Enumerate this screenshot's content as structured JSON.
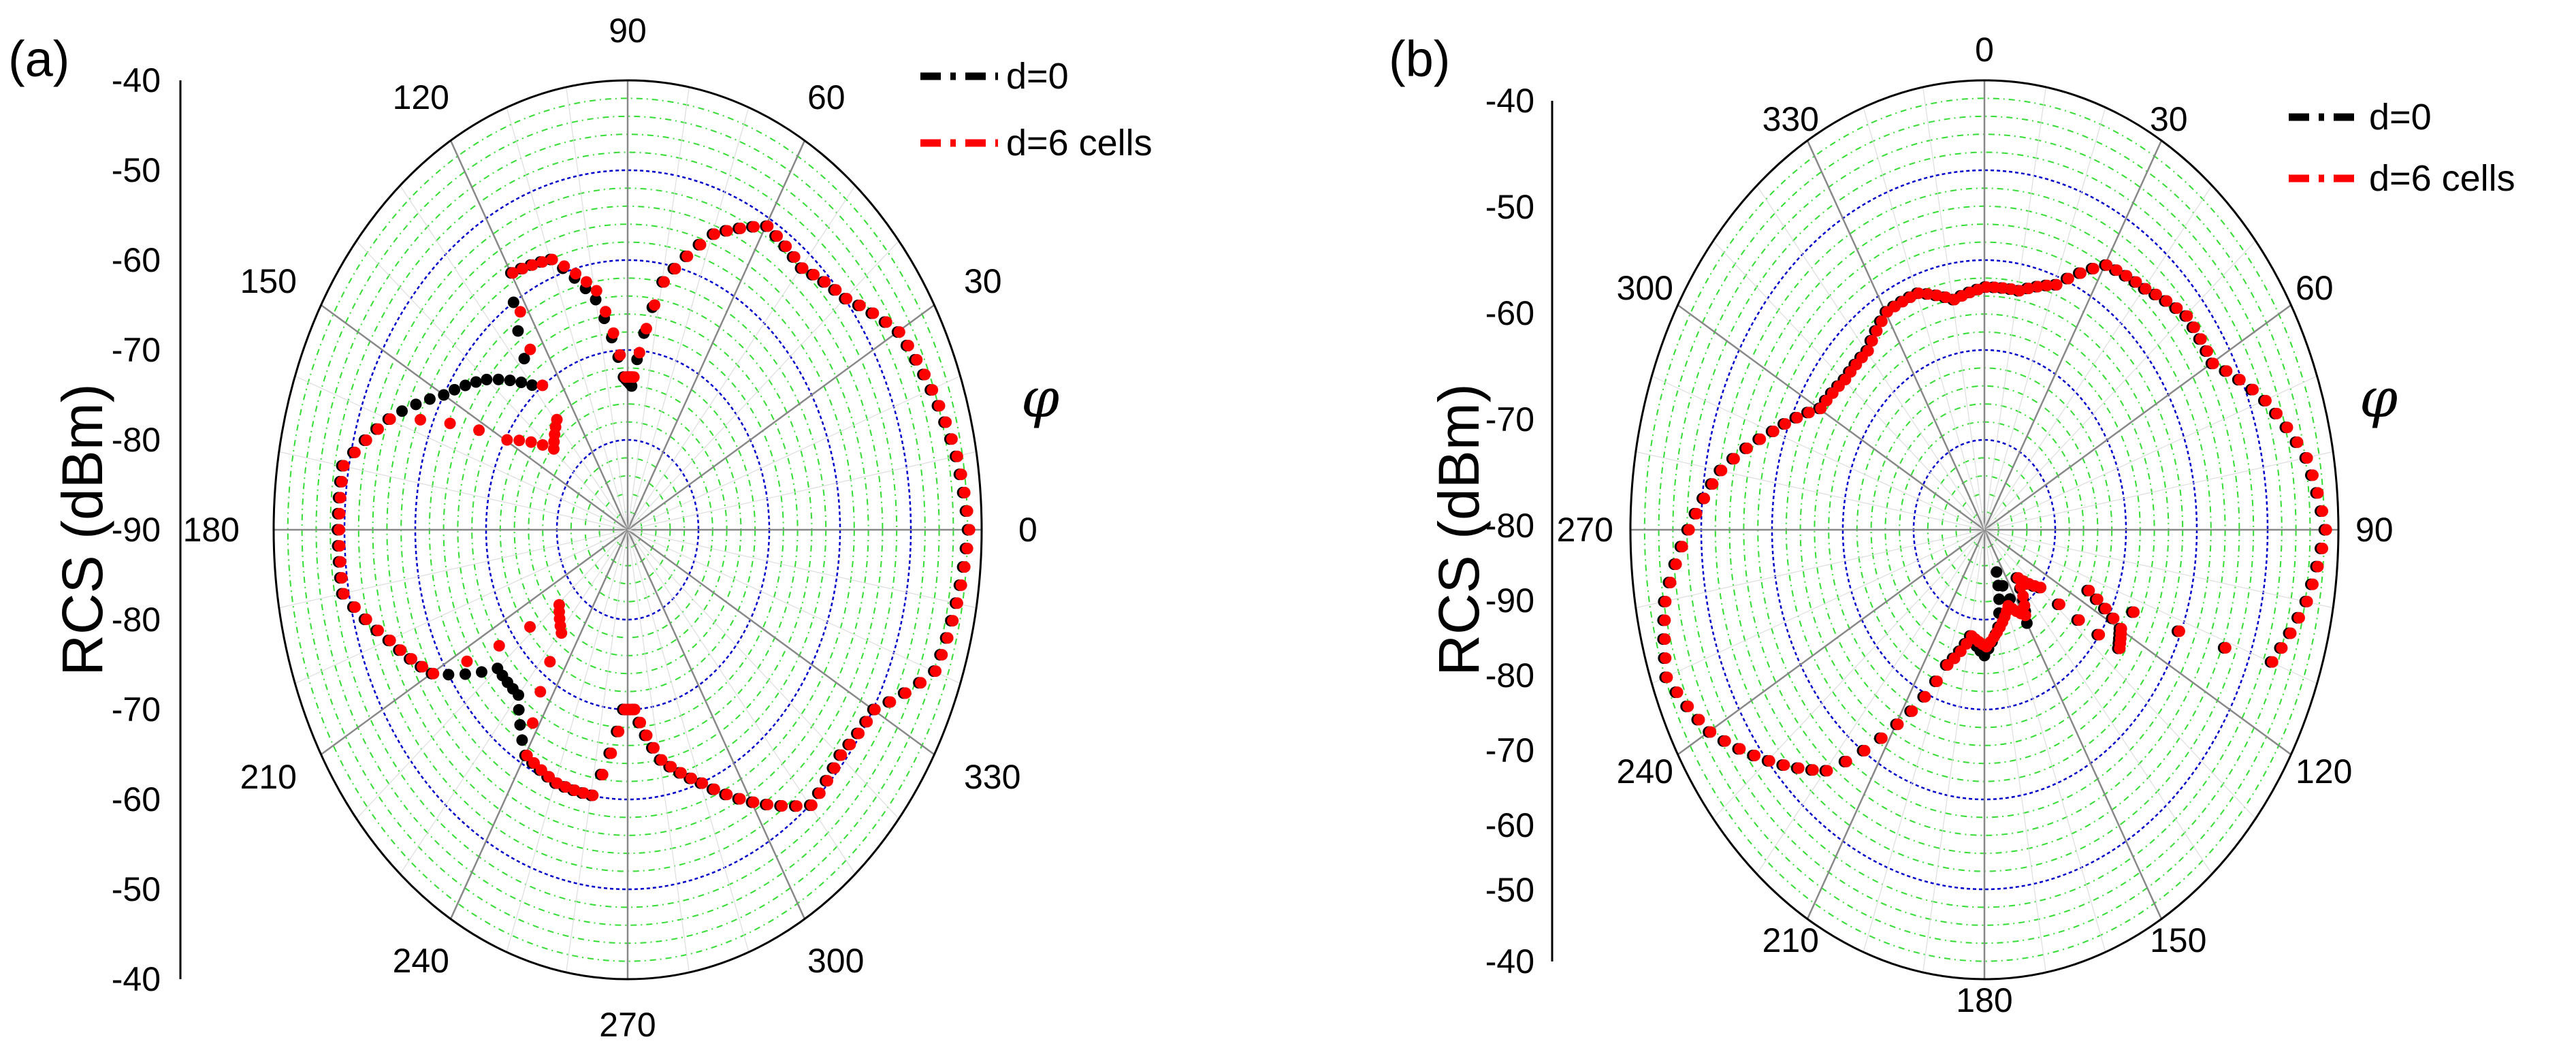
{
  "panels": [
    {
      "id": "a",
      "panel_label": "(a)",
      "angle_var": "φ",
      "y_axis_title": "RCS (dBm)",
      "y_ticks": [
        "-40",
        "-50",
        "-60",
        "-70",
        "-80",
        "-90",
        "-80",
        "-70",
        "-60",
        "-50",
        "-40"
      ],
      "angle_labels": [
        "0",
        "30",
        "60",
        "90",
        "120",
        "150",
        "180",
        "210",
        "240",
        "270",
        "300",
        "330"
      ],
      "legend": [
        {
          "label": "d=0",
          "color": "#000000"
        },
        {
          "label": "d=6 cells",
          "color": "#ff0000"
        }
      ],
      "colors": {
        "major_ring": "#0000cc",
        "minor_ring": "#33dd33",
        "spoke": "#888888",
        "frame": "#000000"
      }
    },
    {
      "id": "b",
      "panel_label": "(b)",
      "angle_var": "φ",
      "y_axis_title": "RCS (dBm)",
      "y_ticks": [
        "-40",
        "-50",
        "-60",
        "-70",
        "-80",
        "-90",
        "-80",
        "-70",
        "-60",
        "-50",
        "-40"
      ],
      "angle_labels": [
        "0",
        "30",
        "60",
        "90",
        "120",
        "150",
        "180",
        "210",
        "240",
        "270",
        "300",
        "330"
      ],
      "legend": [
        {
          "label": "d=0",
          "color": "#000000"
        },
        {
          "label": "d=6 cells",
          "color": "#ff0000"
        }
      ],
      "colors": {
        "major_ring": "#0000cc",
        "minor_ring": "#33dd33",
        "spoke": "#888888",
        "frame": "#000000"
      }
    }
  ],
  "chart_data": [
    {
      "type": "polar-scatter",
      "title": "(a)",
      "angular_axis": {
        "label": "φ",
        "unit": "deg",
        "zero_direction": "right",
        "direction": "counterclockwise",
        "ticks": [
          0,
          30,
          60,
          90,
          120,
          150,
          180,
          210,
          240,
          270,
          300,
          330
        ]
      },
      "radial_axis": {
        "label": "RCS (dBm)",
        "range": [
          -90,
          -40
        ],
        "major_rings": [
          -80,
          -70,
          -60,
          -50,
          -40
        ]
      },
      "series": [
        {
          "name": "d=0",
          "color": "#000000",
          "theta": [
            0,
            10,
            20,
            30,
            40,
            50,
            60,
            70,
            80,
            88,
            92,
            100,
            110,
            120,
            130,
            140,
            150,
            160,
            170,
            180,
            190,
            200,
            210,
            220,
            230,
            240,
            250,
            260,
            268,
            272,
            280,
            290,
            300,
            310,
            320,
            330,
            340,
            350
          ],
          "r": [
            -42,
            -43,
            -44.5,
            -46,
            -50,
            -52,
            -51,
            -55,
            -62,
            -74,
            -73,
            -64,
            -58,
            -57,
            -69,
            -64,
            -60,
            -54,
            -49,
            -49,
            -49,
            -54,
            -58,
            -66,
            -66,
            -61,
            -60,
            -60,
            -70,
            -70,
            -64,
            -60,
            -55,
            -50,
            -51,
            -50,
            -44,
            -43
          ]
        },
        {
          "name": "d=6 cells",
          "color": "#ff0000",
          "theta": [
            0,
            10,
            20,
            30,
            40,
            50,
            60,
            70,
            80,
            88,
            92,
            100,
            110,
            120,
            130,
            140,
            150,
            160,
            170,
            180,
            190,
            200,
            210,
            220,
            230,
            240,
            250,
            260,
            268,
            272,
            280,
            290,
            300,
            310,
            320,
            330,
            340,
            350
          ],
          "r": [
            -42,
            -43,
            -44.5,
            -46,
            -50,
            -52,
            -51,
            -55,
            -62,
            -73,
            -73,
            -63,
            -58,
            -57,
            -74,
            -76,
            -70,
            -54,
            -49,
            -49,
            -49,
            -54,
            -58,
            -77,
            -75,
            -61,
            -60,
            -60,
            -70,
            -70,
            -64,
            -60,
            -55,
            -50,
            -51,
            -50,
            -44,
            -43
          ]
        }
      ]
    },
    {
      "type": "polar-scatter",
      "title": "(b)",
      "angular_axis": {
        "label": "φ",
        "unit": "deg",
        "zero_direction": "top",
        "direction": "clockwise",
        "ticks": [
          0,
          30,
          60,
          90,
          120,
          150,
          180,
          210,
          240,
          270,
          300,
          330
        ]
      },
      "radial_axis": {
        "label": "RCS (dBm)",
        "range": [
          -90,
          -40
        ],
        "major_rings": [
          -80,
          -70,
          -60,
          -50,
          -40
        ]
      },
      "series": [
        {
          "name": "d=0",
          "color": "#000000",
          "theta": [
            0,
            10,
            20,
            30,
            40,
            50,
            60,
            70,
            80,
            90,
            100,
            110,
            115,
            120,
            125,
            130,
            140,
            150,
            160,
            170,
            180,
            190,
            200,
            210,
            220,
            230,
            240,
            250,
            260,
            270,
            280,
            290,
            300,
            310,
            320,
            330,
            340,
            350
          ],
          "r": [
            -63,
            -63,
            -61,
            -56,
            -55,
            -53,
            -53,
            -48,
            -44,
            -42,
            -44,
            -47,
            -74,
            -68,
            -67,
            -80,
            -83,
            -78,
            -85,
            -79,
            -76,
            -78,
            -74,
            -65,
            -55,
            -50,
            -45,
            -42,
            -44,
            -48,
            -52,
            -58,
            -63,
            -64,
            -64,
            -62,
            -62,
            -64
          ]
        },
        {
          "name": "d=6 cells",
          "color": "#ff0000",
          "theta": [
            0,
            10,
            20,
            30,
            40,
            50,
            60,
            70,
            80,
            90,
            100,
            110,
            115,
            120,
            125,
            130,
            140,
            150,
            160,
            170,
            180,
            190,
            200,
            210,
            220,
            230,
            240,
            250,
            260,
            270,
            280,
            290,
            300,
            310,
            320,
            330,
            340,
            350
          ],
          "r": [
            -63,
            -63,
            -61,
            -56,
            -55,
            -53,
            -53,
            -48,
            -44,
            -42,
            -44,
            -47,
            -74,
            -68,
            -67,
            -80,
            -83,
            -79,
            -81,
            -79,
            -77,
            -78,
            -74,
            -65,
            -55,
            -50,
            -45,
            -42,
            -44,
            -48,
            -52,
            -58,
            -63,
            -64,
            -64,
            -62,
            -62,
            -64
          ]
        }
      ]
    }
  ]
}
